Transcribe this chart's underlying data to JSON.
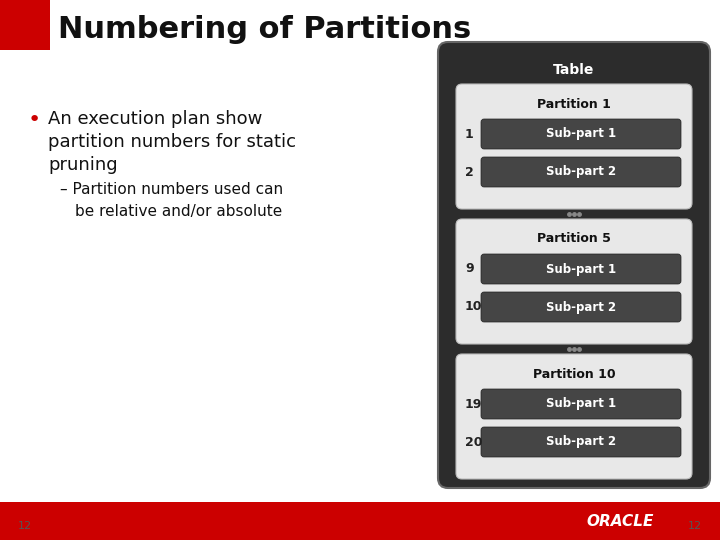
{
  "title": "Numbering of Partitions",
  "title_fontsize": 22,
  "background_color": "#ffffff",
  "bullet_color": "#cc0000",
  "table_dark_bg": "#2a2a2a",
  "partition_box_top": "#f0f0f0",
  "partition_box_bot": "#b0b0b0",
  "subpart_box_dark": "#444444",
  "subpart_text_color": "#ffffff",
  "table_label_color": "#ffffff",
  "partitions": [
    {
      "label": "Partition 1",
      "sub_parts": [
        "Sub-part 1",
        "Sub-part 2"
      ],
      "numbers": [
        "1",
        "2"
      ]
    },
    {
      "label": "Partition 5",
      "sub_parts": [
        "Sub-part 1",
        "Sub-part 2"
      ],
      "numbers": [
        "9",
        "10"
      ]
    },
    {
      "label": "Partition 10",
      "sub_parts": [
        "Sub-part 1",
        "Sub-part 2"
      ],
      "numbers": [
        "19",
        "20"
      ]
    }
  ],
  "oracle_red": "#cc0000",
  "page_number": "12",
  "header_red_box_color": "#cc0000",
  "dots_color": "#888888"
}
